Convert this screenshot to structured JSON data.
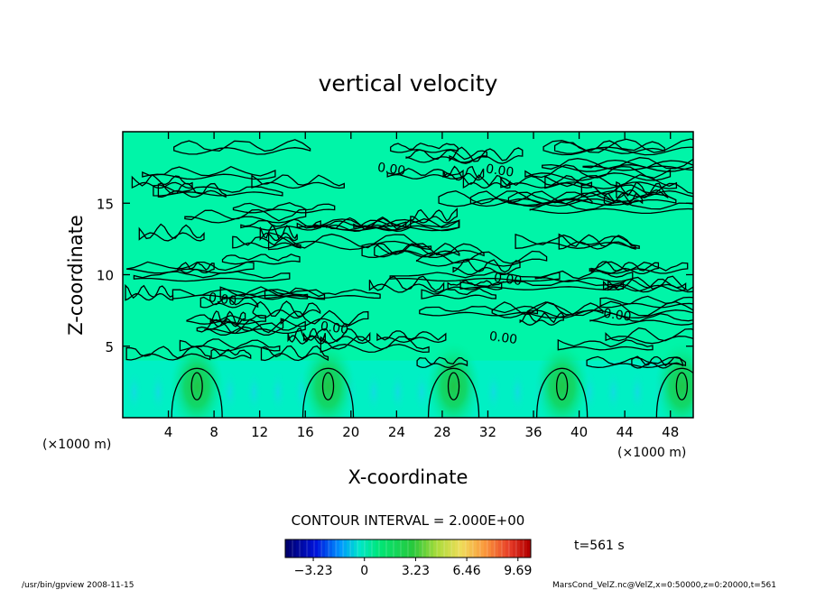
{
  "chart_data": {
    "type": "heatmap",
    "title": "vertical velocity",
    "xlabel": "X-coordinate",
    "ylabel": "Z-coordinate",
    "x_unit_left": "(×1000 m)",
    "x_unit_right": "(×1000 m)",
    "xlim": [
      0,
      50
    ],
    "ylim": [
      0,
      20
    ],
    "x_ticks": [
      4,
      8,
      12,
      16,
      20,
      24,
      28,
      32,
      36,
      40,
      44,
      48
    ],
    "y_ticks": [
      5,
      10,
      15
    ],
    "contour_interval_text": "CONTOUR INTERVAL = 2.000E+00",
    "contour_labels": [
      {
        "text": "0.00",
        "x": 23.5,
        "y": 17.1
      },
      {
        "text": "0.00",
        "x": 33.0,
        "y": 17.0
      },
      {
        "text": "0.00",
        "x": 8.7,
        "y": 8.0
      },
      {
        "text": "0.00",
        "x": 18.5,
        "y": 6.0
      },
      {
        "text": "0.00",
        "x": 33.3,
        "y": 5.3
      },
      {
        "text": "0.00",
        "x": 33.7,
        "y": 9.4
      },
      {
        "text": "0.00",
        "x": 43.3,
        "y": 6.9
      }
    ],
    "updraft_cores_x": [
      6.5,
      18.0,
      29.0,
      38.5,
      49.0
    ],
    "colorbar": {
      "min": -5.0,
      "max": 10.5,
      "tick_values": [
        -3.23,
        0,
        3.23,
        6.46,
        9.69
      ],
      "tick_labels": [
        "−3.23",
        "0",
        "3.23",
        "6.46",
        "9.69"
      ]
    },
    "time_label": "t=561 s"
  },
  "footer": {
    "left": "/usr/bin/gpview   2008-11-15",
    "right": "MarsCond_VelZ.nc@VelZ,x=0:50000,z=0:20000,t=561"
  },
  "colors": {
    "background": "#00f5a8",
    "line": "#000000"
  }
}
